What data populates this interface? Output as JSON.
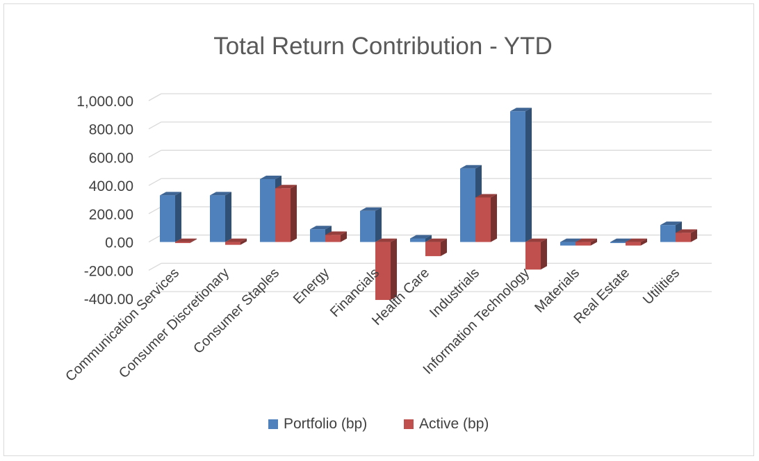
{
  "chart_data": {
    "type": "bar",
    "title": "Total Return Contribution - YTD",
    "xlabel": "",
    "ylabel": "",
    "categories": [
      "Communication Services",
      "Consumer Discretionary",
      "Consumer Staples",
      "Energy",
      "Financials",
      "Health Care",
      "Industrials",
      "Information Technology",
      "Materials",
      "Real Estate",
      "Utilities"
    ],
    "series": [
      {
        "name": "Portfolio (bp)",
        "color": "#4f81bd",
        "values": [
          330,
          330,
          445,
          90,
          220,
          25,
          520,
          925,
          -25,
          -5,
          120
        ]
      },
      {
        "name": "Active (bp)",
        "color": "#c0504d",
        "values": [
          -5,
          -20,
          380,
          50,
          -410,
          -100,
          315,
          -195,
          -25,
          -25,
          65
        ]
      }
    ],
    "ylim": [
      -400,
      1000
    ],
    "yticks": [
      1000,
      800,
      600,
      400,
      200,
      0,
      -200,
      -400
    ],
    "ytick_labels": [
      "1,000.00",
      "800.00",
      "600.00",
      "400.00",
      "200.00",
      "0.00",
      "-200.00",
      "-400.00"
    ],
    "grid": true,
    "legend_position": "bottom",
    "style": "3d-clustered-column"
  }
}
